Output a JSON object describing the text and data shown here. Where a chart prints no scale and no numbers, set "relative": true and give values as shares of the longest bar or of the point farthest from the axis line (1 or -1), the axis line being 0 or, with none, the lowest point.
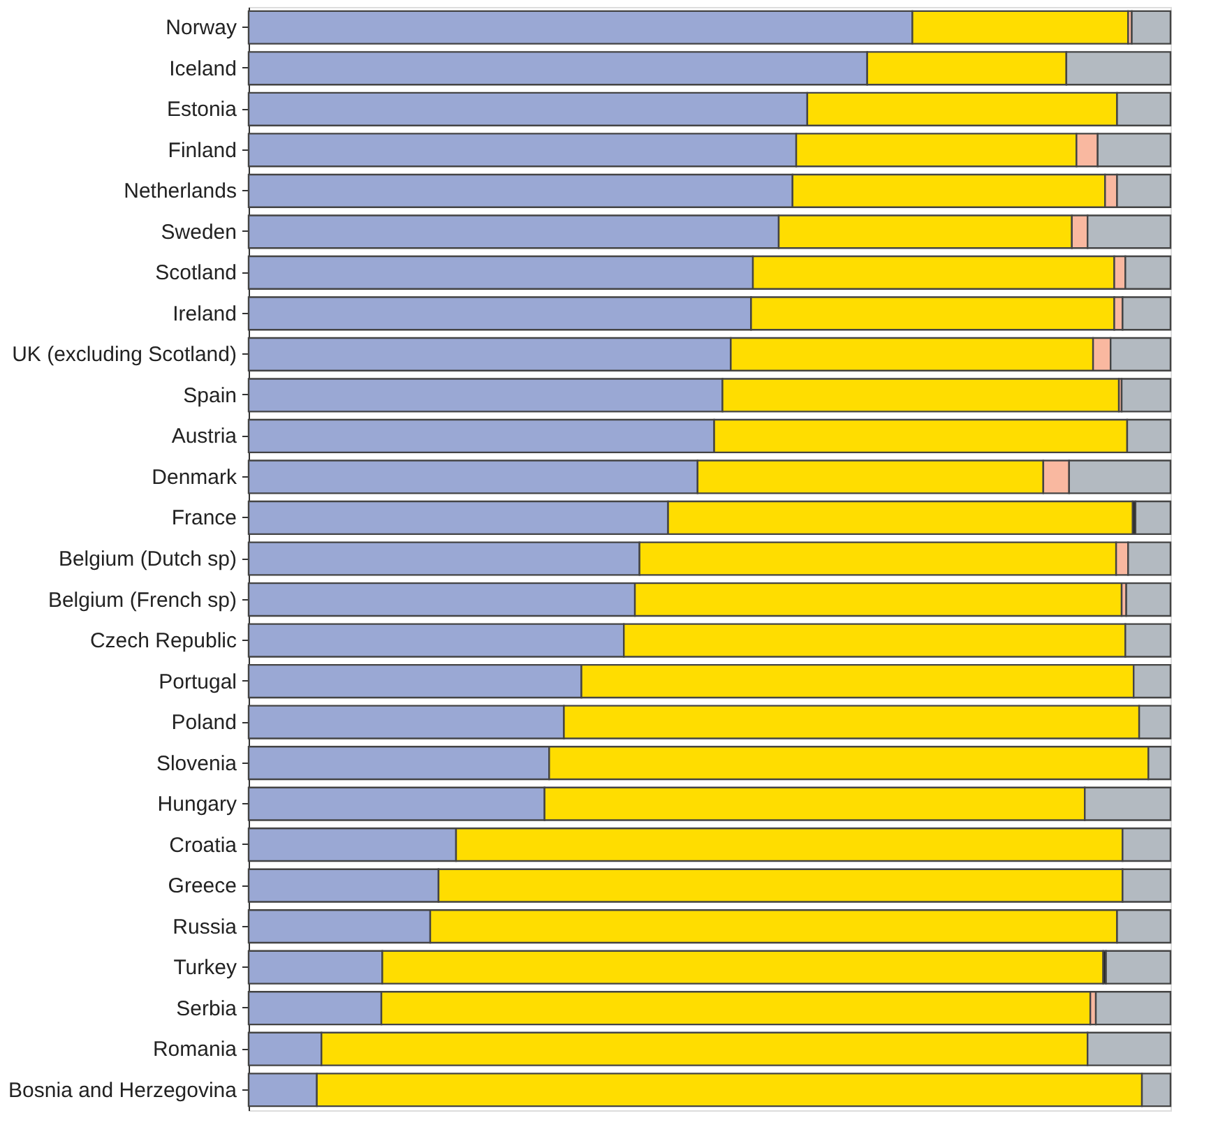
{
  "chart_data": {
    "type": "bar",
    "orientation": "horizontal",
    "stacked": true,
    "relative": true,
    "categories": [
      "Norway",
      "Iceland",
      "Estonia",
      "Finland",
      "Netherlands",
      "Sweden",
      "Scotland",
      "Ireland",
      "UK (excluding Scotland)",
      "Spain",
      "Austria",
      "Denmark",
      "France",
      "Belgium (Dutch sp)",
      "Belgium (French sp)",
      "Czech Republic",
      "Portugal",
      "Poland",
      "Slovenia",
      "Hungary",
      "Croatia",
      "Greece",
      "Russia",
      "Turkey",
      "Serbia",
      "Romania",
      "Bosnia and Herzegovina"
    ],
    "series": [
      {
        "color": "#9aa8d4",
        "values": [
          0.72,
          0.671,
          0.606,
          0.594,
          0.59,
          0.575,
          0.547,
          0.545,
          0.523,
          0.514,
          0.505,
          0.487,
          0.455,
          0.424,
          0.419,
          0.407,
          0.361,
          0.342,
          0.326,
          0.321,
          0.225,
          0.206,
          0.197,
          0.145,
          0.144,
          0.079,
          0.074
        ]
      },
      {
        "color": "#ffdd00",
        "values": [
          0.234,
          0.216,
          0.336,
          0.304,
          0.339,
          0.318,
          0.392,
          0.394,
          0.393,
          0.43,
          0.448,
          0.375,
          0.504,
          0.517,
          0.528,
          0.544,
          0.599,
          0.624,
          0.65,
          0.586,
          0.723,
          0.742,
          0.745,
          0.782,
          0.769,
          0.831,
          0.895
        ]
      },
      {
        "color": "#f9b8a0",
        "values": [
          0.004,
          0,
          0,
          0.023,
          0.013,
          0.017,
          0.012,
          0.009,
          0.019,
          0.003,
          0,
          0.028,
          0,
          0.013,
          0.005,
          0,
          0,
          0,
          0,
          0,
          0,
          0,
          0,
          0,
          0.006,
          0,
          0
        ]
      },
      {
        "color": "#222222",
        "values": [
          0,
          0,
          0,
          0,
          0,
          0,
          0,
          0,
          0,
          0,
          0,
          0,
          0.003,
          0,
          0,
          0,
          0,
          0,
          0,
          0,
          0,
          0,
          0,
          0.003,
          0,
          0,
          0
        ]
      },
      {
        "color": "#b3bac1",
        "values": [
          0.042,
          0.113,
          0.058,
          0.079,
          0.058,
          0.09,
          0.049,
          0.052,
          0.065,
          0.053,
          0.047,
          0.11,
          0.038,
          0.046,
          0.048,
          0.049,
          0.04,
          0.034,
          0.024,
          0.093,
          0.052,
          0.052,
          0.058,
          0.07,
          0.081,
          0.09,
          0.031
        ]
      }
    ]
  }
}
